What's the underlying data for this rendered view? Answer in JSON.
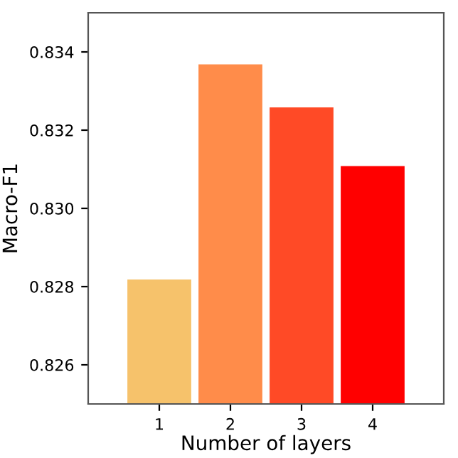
{
  "chart_data": {
    "type": "bar",
    "xlabel": "Number of layers",
    "ylabel": "Macro-F1",
    "categories": [
      "1",
      "2",
      "3",
      "4"
    ],
    "values": [
      0.8282,
      0.8337,
      0.8326,
      0.8311
    ],
    "colors": [
      "#f6c26b",
      "#ff8c4a",
      "#ff4a26",
      "#ff0000"
    ],
    "ylim": [
      0.825,
      0.835
    ],
    "yticks": [
      {
        "value": 0.826,
        "label": "0.826"
      },
      {
        "value": 0.828,
        "label": "0.828"
      },
      {
        "value": 0.83,
        "label": "0.830"
      },
      {
        "value": 0.832,
        "label": "0.832"
      },
      {
        "value": 0.834,
        "label": "0.834"
      }
    ],
    "grid": false,
    "legend": false
  }
}
